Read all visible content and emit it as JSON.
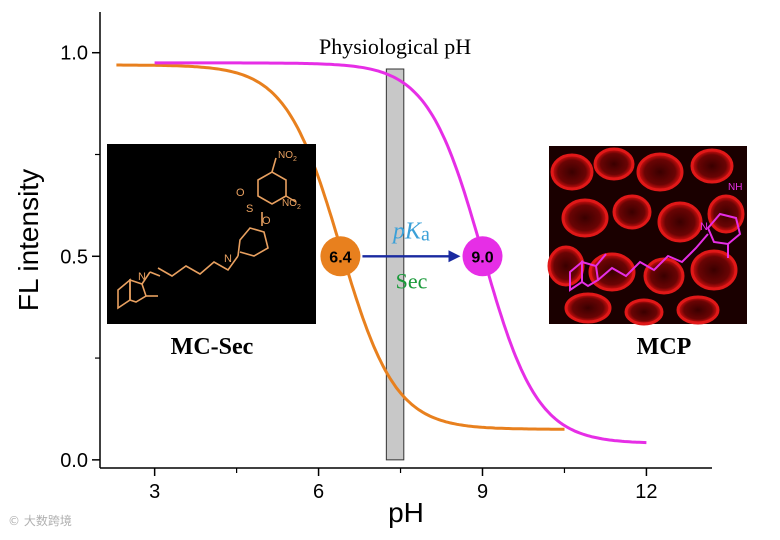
{
  "chart_data": {
    "type": "line",
    "xlabel": "pH",
    "ylabel": "FL intensity",
    "xlim": [
      2,
      13.2
    ],
    "ylim": [
      -0.02,
      1.1
    ],
    "x_ticks": [
      {
        "value": 3,
        "label": "3"
      },
      {
        "value": 6,
        "label": "6"
      },
      {
        "value": 9,
        "label": "9"
      },
      {
        "value": 12,
        "label": "12"
      }
    ],
    "x_minor_ticks": [
      4.5,
      7.5,
      10.5
    ],
    "y_ticks": [
      {
        "value": 0.0,
        "label": "0.0"
      },
      {
        "value": 0.5,
        "label": "0.5"
      },
      {
        "value": 1.0,
        "label": "1.0"
      }
    ],
    "series": [
      {
        "name": "MC-Sec",
        "color": "#e8801e",
        "pka": 6.4,
        "top": 0.97,
        "bottom": 0.075,
        "slope": 1.0,
        "x_start": 2.3,
        "x_end": 10.5
      },
      {
        "name": "MCP",
        "color": "#e62ee6",
        "pka": 9.0,
        "top": 0.975,
        "bottom": 0.04,
        "slope": 1.0,
        "x_start": 3.0,
        "x_end": 12.0
      }
    ],
    "physiological_band": {
      "label": "Physiological pH",
      "x_from": 7.35,
      "x_to": 7.45,
      "color": "#c8c8c8"
    },
    "pka_markers": [
      {
        "label": "6.4",
        "x": 6.4,
        "y": 0.5,
        "color": "#e8801e"
      },
      {
        "label": "9.0",
        "x": 9.0,
        "y": 0.5,
        "color": "#e62ee6"
      }
    ],
    "annotations": {
      "pka_p": "p",
      "pka_K": "K",
      "pka_sub": "a",
      "sec": "Sec",
      "arrow_color": "#1a2aa0",
      "pka_color": "#3aa0d8",
      "sec_color": "#1a9a3a"
    },
    "insets": [
      {
        "name": "MC-Sec",
        "label": "MC-Sec",
        "no2_a": "NO",
        "no2_b": "NO",
        "sub2": "2",
        "n": "N",
        "o": "O",
        "s": "S"
      },
      {
        "name": "MCP",
        "label": "MCP",
        "nh": "NH",
        "n": "N"
      }
    ]
  },
  "watermark": "© 大数跨境"
}
